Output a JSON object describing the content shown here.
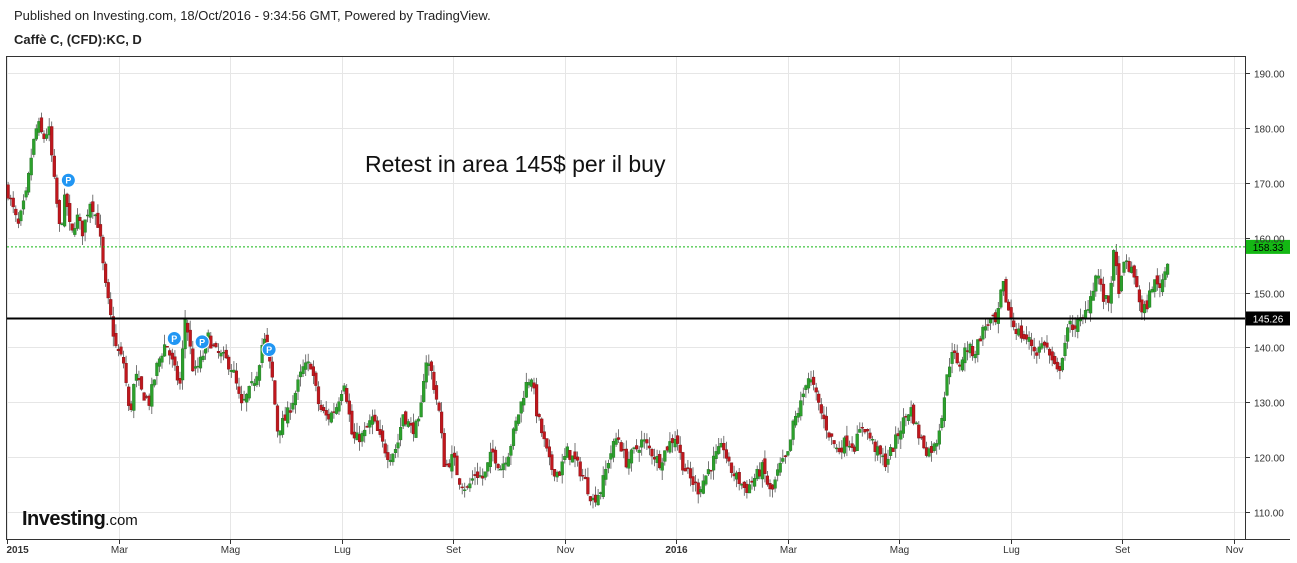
{
  "header": {
    "published": "Published on Investing.com, 18/Oct/2016 - 9:34:56 GMT, Powered by TradingView.",
    "symbol": "Caffè C, (CFD):KC, D"
  },
  "logo": {
    "brand": "Investing",
    "domain": ".com"
  },
  "colors": {
    "up": "#2ca02c",
    "down": "#c0171d",
    "wick": "#555555",
    "grid": "#e6e6e6",
    "support": "#000000",
    "last_price": "#14b814",
    "marker": "#2196f3"
  },
  "chart_data": {
    "type": "candlestick",
    "title": "",
    "ylim": [
      105,
      193
    ],
    "y_ticks": [
      110,
      120,
      130,
      140,
      150,
      160,
      170,
      180,
      190
    ],
    "y_tick_labels": [
      "110.00",
      "120.00",
      "130.00",
      "140.00",
      "150.00",
      "160.00",
      "170.00",
      "180.00",
      "190.00"
    ],
    "x_labels": [
      "2015",
      "Mar",
      "Mag",
      "Lug",
      "Set",
      "Nov",
      "2016",
      "Mar",
      "Mag",
      "Lug",
      "Set",
      "Nov"
    ],
    "x_label_months": [
      0,
      2,
      4,
      6,
      8,
      10,
      12,
      14,
      16,
      18,
      20,
      22
    ],
    "date_range_months": [
      0,
      22.2
    ],
    "annotation": "Retest in area 145$ per il buy",
    "support_level": {
      "value": 145.26,
      "label": "145.26"
    },
    "last_price": {
      "value": 158.33,
      "label": "158.33"
    },
    "markers": [
      {
        "label": "P",
        "month": 1.1,
        "price": 170.5
      },
      {
        "label": "P",
        "month": 3.0,
        "price": 141.6
      },
      {
        "label": "P",
        "month": 3.5,
        "price": 141.0
      },
      {
        "label": "P",
        "month": 4.7,
        "price": 139.6
      }
    ],
    "close_path": [
      [
        0.0,
        169
      ],
      [
        0.2,
        162
      ],
      [
        0.35,
        168
      ],
      [
        0.45,
        176
      ],
      [
        0.55,
        181
      ],
      [
        0.65,
        178
      ],
      [
        0.75,
        180
      ],
      [
        0.85,
        170
      ],
      [
        0.95,
        161
      ],
      [
        1.05,
        168
      ],
      [
        1.15,
        160
      ],
      [
        1.25,
        164
      ],
      [
        1.35,
        161
      ],
      [
        1.5,
        167
      ],
      [
        1.65,
        162
      ],
      [
        1.75,
        152
      ],
      [
        1.85,
        146
      ],
      [
        1.95,
        140
      ],
      [
        2.1,
        137
      ],
      [
        2.2,
        127
      ],
      [
        2.3,
        135
      ],
      [
        2.4,
        132
      ],
      [
        2.55,
        130
      ],
      [
        2.7,
        137
      ],
      [
        2.85,
        141
      ],
      [
        3.0,
        136
      ],
      [
        3.1,
        133
      ],
      [
        3.2,
        146
      ],
      [
        3.35,
        135
      ],
      [
        3.5,
        138
      ],
      [
        3.6,
        142
      ],
      [
        3.75,
        139
      ],
      [
        3.9,
        138
      ],
      [
        4.05,
        136
      ],
      [
        4.2,
        129
      ],
      [
        4.4,
        133
      ],
      [
        4.5,
        136
      ],
      [
        4.6,
        142
      ],
      [
        4.75,
        135
      ],
      [
        4.85,
        125
      ],
      [
        5.0,
        127
      ],
      [
        5.15,
        131
      ],
      [
        5.3,
        136
      ],
      [
        5.45,
        137
      ],
      [
        5.6,
        129
      ],
      [
        5.75,
        127
      ],
      [
        5.9,
        129
      ],
      [
        6.05,
        134
      ],
      [
        6.2,
        123
      ],
      [
        6.4,
        124
      ],
      [
        6.55,
        127
      ],
      [
        6.7,
        123
      ],
      [
        6.85,
        120
      ],
      [
        7.0,
        122
      ],
      [
        7.1,
        128
      ],
      [
        7.25,
        125
      ],
      [
        7.4,
        126
      ],
      [
        7.5,
        138
      ],
      [
        7.6,
        136
      ],
      [
        7.75,
        128
      ],
      [
        7.85,
        118
      ],
      [
        8.0,
        120
      ],
      [
        8.1,
        116
      ],
      [
        8.25,
        114
      ],
      [
        8.4,
        117
      ],
      [
        8.55,
        116
      ],
      [
        8.7,
        121
      ],
      [
        8.85,
        118
      ],
      [
        9.0,
        121
      ],
      [
        9.15,
        127
      ],
      [
        9.3,
        133
      ],
      [
        9.4,
        135
      ],
      [
        9.5,
        128
      ],
      [
        9.6,
        124
      ],
      [
        9.75,
        118
      ],
      [
        9.9,
        117
      ],
      [
        10.05,
        121
      ],
      [
        10.2,
        119
      ],
      [
        10.35,
        116
      ],
      [
        10.5,
        112
      ],
      [
        10.65,
        114
      ],
      [
        10.8,
        120
      ],
      [
        10.95,
        124
      ],
      [
        11.1,
        119
      ],
      [
        11.25,
        121
      ],
      [
        11.4,
        123
      ],
      [
        11.55,
        121
      ],
      [
        11.7,
        119
      ],
      [
        11.85,
        122
      ],
      [
        12.0,
        124
      ],
      [
        12.1,
        119
      ],
      [
        12.25,
        116
      ],
      [
        12.4,
        114
      ],
      [
        12.55,
        117
      ],
      [
        12.7,
        120
      ],
      [
        12.85,
        122
      ],
      [
        12.95,
        118
      ],
      [
        13.1,
        116
      ],
      [
        13.25,
        114
      ],
      [
        13.4,
        116
      ],
      [
        13.55,
        118
      ],
      [
        13.7,
        113
      ],
      [
        13.85,
        118
      ],
      [
        14.0,
        120
      ],
      [
        14.1,
        126
      ],
      [
        14.25,
        130
      ],
      [
        14.35,
        135
      ],
      [
        14.45,
        133
      ],
      [
        14.6,
        128
      ],
      [
        14.75,
        124
      ],
      [
        14.9,
        121
      ],
      [
        15.05,
        123
      ],
      [
        15.2,
        122
      ],
      [
        15.35,
        126
      ],
      [
        15.5,
        123
      ],
      [
        15.6,
        121
      ],
      [
        15.75,
        119
      ],
      [
        15.9,
        122
      ],
      [
        16.05,
        126
      ],
      [
        16.2,
        129
      ],
      [
        16.35,
        124
      ],
      [
        16.5,
        121
      ],
      [
        16.65,
        122
      ],
      [
        16.75,
        127
      ],
      [
        16.85,
        134
      ],
      [
        16.95,
        140
      ],
      [
        17.05,
        136
      ],
      [
        17.2,
        140
      ],
      [
        17.35,
        139
      ],
      [
        17.45,
        142
      ],
      [
        17.55,
        144
      ],
      [
        17.65,
        145
      ],
      [
        17.75,
        144
      ],
      [
        17.85,
        152
      ],
      [
        17.95,
        147
      ],
      [
        18.05,
        144
      ],
      [
        18.2,
        142
      ],
      [
        18.35,
        141
      ],
      [
        18.45,
        139
      ],
      [
        18.6,
        141
      ],
      [
        18.75,
        137
      ],
      [
        18.85,
        135
      ],
      [
        18.95,
        140
      ],
      [
        19.05,
        144
      ],
      [
        19.15,
        144
      ],
      [
        19.3,
        145
      ],
      [
        19.45,
        150
      ],
      [
        19.55,
        154
      ],
      [
        19.65,
        149
      ],
      [
        19.75,
        148
      ],
      [
        19.85,
        157
      ],
      [
        19.95,
        150
      ],
      [
        20.05,
        156
      ],
      [
        20.15,
        154
      ],
      [
        20.25,
        152
      ],
      [
        20.35,
        146
      ],
      [
        20.45,
        148
      ],
      [
        20.55,
        152
      ],
      [
        20.65,
        151
      ],
      [
        20.75,
        153
      ],
      [
        20.85,
        158.3
      ]
    ]
  }
}
